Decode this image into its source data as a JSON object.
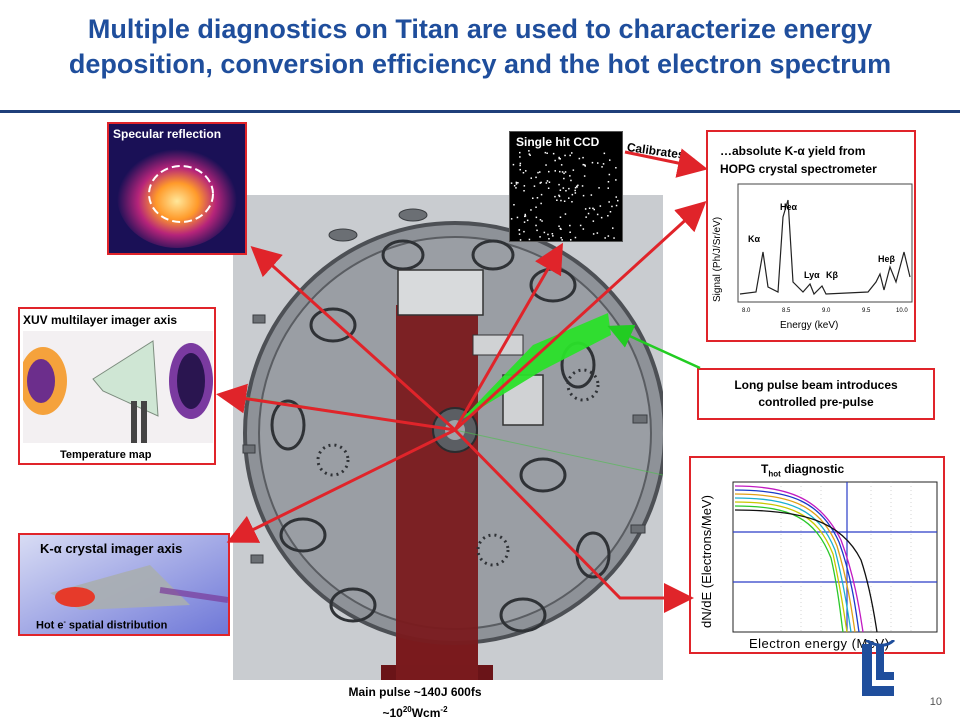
{
  "slide": {
    "title_line1": "Multiple diagnostics on Titan are used to characterize energy",
    "title_line2": "deposition, conversion efficiency and the hot electron spectrum",
    "page_number": "10"
  },
  "panels": {
    "specular": {
      "label": "Specular reflection"
    },
    "xuv": {
      "label": "XUV multilayer imager axis",
      "caption": "Temperature map"
    },
    "kalpha_imager": {
      "label": "K-α crystal imager axis",
      "caption_prefix": "Hot e",
      "caption_sup": "-",
      "caption_suffix": " spatial distribution"
    },
    "ccd": {
      "label": "Single hit CCD",
      "calibrates": "Calibrates…"
    },
    "hopg": {
      "title_line1": "…absolute K-α yield from",
      "title_line2": "HOPG crystal spectrometer",
      "ylabel": "Signal (Ph/J/Sr/eV)",
      "xlabel": "Energy (keV)",
      "peaks": [
        "Kα",
        "Heα",
        "Lyα",
        "Kβ",
        "Heβ"
      ],
      "ticks": [
        "8.0",
        "8.5",
        "9.0",
        "9.5",
        "10.0"
      ]
    },
    "long_pulse": {
      "line1": "Long pulse beam introduces",
      "line2": "controlled pre-pulse"
    },
    "thot": {
      "title_main": "T",
      "title_sub": "hot",
      "title_rest": " diagnostic",
      "ylabel": "dN/dE (Electrons/MeV)",
      "xlabel": "Electron energy (MeV)"
    }
  },
  "bottom": {
    "main_pulse_line1": "Main pulse ~140J 600fs",
    "main_pulse_line2_pre": "~10",
    "main_pulse_line2_sup": "20",
    "main_pulse_line2_mid": "Wcm",
    "main_pulse_line2_sup2": "-2"
  },
  "colors": {
    "title": "#1f4e9c",
    "arrow_red": "#e0242a",
    "arrow_green": "#22cc22",
    "beam_dark_red": "#7a1a1e"
  }
}
